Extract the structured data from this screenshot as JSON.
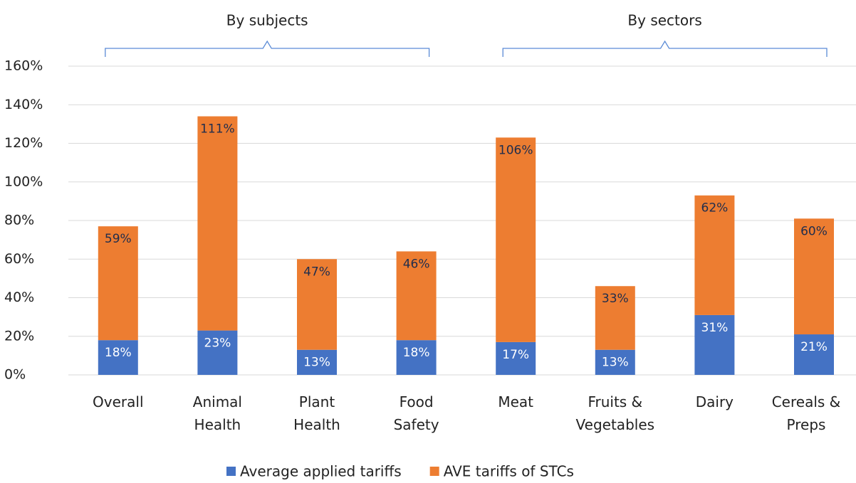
{
  "chart_data": {
    "type": "stacked_bar",
    "annotations": [
      "By subjects",
      "By sectors"
    ],
    "categories": [
      "Overall",
      "Animal\nHealth",
      "Plant\nHealth",
      "Food\nSafety",
      "Meat",
      "Fruits &\nVegetables",
      "Dairy",
      "Cereals &\nPreps"
    ],
    "series": [
      {
        "name": "Average applied tariffs",
        "color": "#4472c4",
        "values": [
          18,
          23,
          13,
          18,
          17,
          13,
          31,
          21
        ],
        "value_labels": [
          "18%",
          "23%",
          "13%",
          "18%",
          "17%",
          "13%",
          "31%",
          "21%"
        ]
      },
      {
        "name": "AVE tariffs of STCs",
        "color": "#ed7d31",
        "values": [
          59,
          111,
          47,
          46,
          106,
          33,
          62,
          60
        ],
        "value_labels": [
          "59%",
          "111%",
          "47%",
          "46%",
          "106%",
          "33%",
          "62%",
          "60%"
        ]
      }
    ],
    "ylim": [
      0,
      160
    ],
    "yticks": [
      {
        "value": 0,
        "label": "0%"
      },
      {
        "value": 20,
        "label": "20%"
      },
      {
        "value": 40,
        "label": "40%"
      },
      {
        "value": 60,
        "label": "60%"
      },
      {
        "value": 80,
        "label": "80%"
      },
      {
        "value": 100,
        "label": "100%"
      },
      {
        "value": 120,
        "label": "120%"
      },
      {
        "value": 140,
        "label": "140%"
      },
      {
        "value": 160,
        "label": "160%"
      }
    ],
    "grid": true,
    "legend": "bottom"
  }
}
